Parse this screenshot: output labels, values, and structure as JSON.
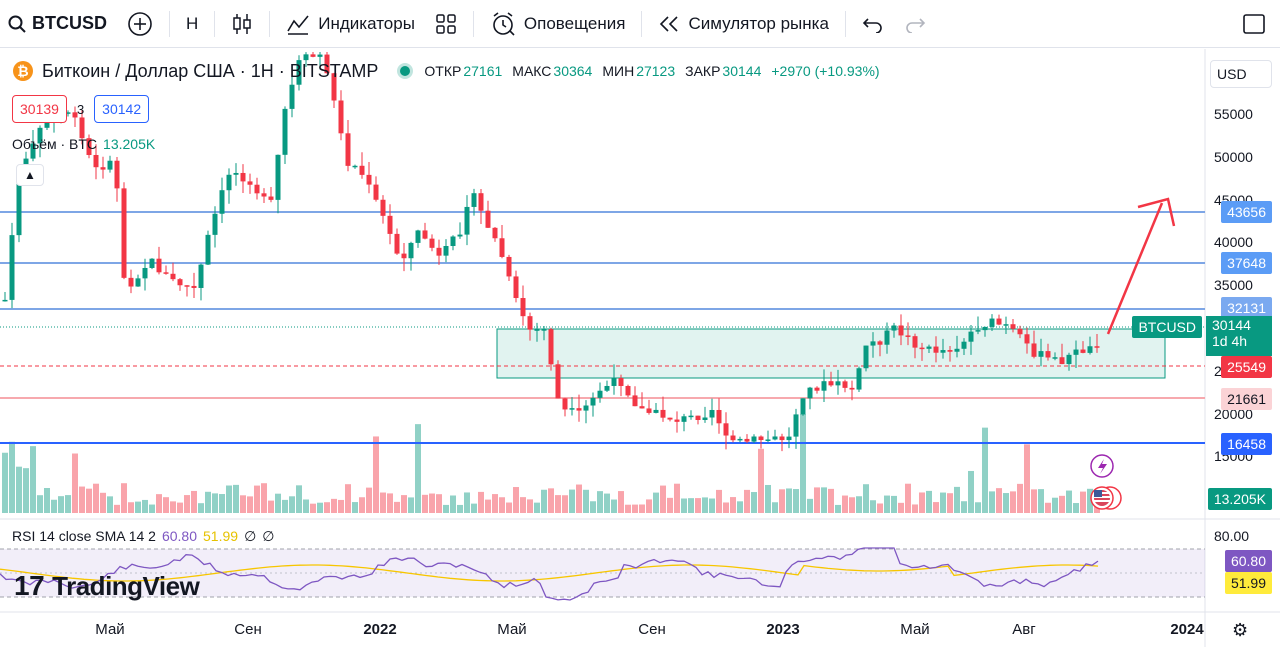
{
  "toolbar": {
    "symbol": "BTCUSD",
    "interval": "Н",
    "indicators": "Индикаторы",
    "alerts": "Оповещения",
    "replay": "Симулятор рынка"
  },
  "legend": {
    "title": "Биткоин / Доллар США · 1Н · BITSTAMP",
    "open_k": "ОТКР",
    "open_v": "27161",
    "high_k": "МАКС",
    "high_v": "30364",
    "low_k": "МИН",
    "low_v": "27123",
    "close_k": "ЗАКР",
    "close_v": "30144",
    "change": "+2970 (+10.93%)",
    "bid": "30139",
    "spread": "3",
    "ask": "30142",
    "volume_label": "Объём · BTC",
    "volume_value": "13.205K"
  },
  "currency": "USD",
  "rsi": {
    "label": "RSI 14 close SMA 14 2",
    "value": "60.80",
    "sma": "51.99",
    "extra1": "∅",
    "extra2": "∅"
  },
  "brand": "TradingView",
  "colors": {
    "up": "#089981",
    "down": "#f23645",
    "level_blue": "#2962ff",
    "rsi": "#7e57c2",
    "rsi_sma": "#f7c600"
  },
  "price_axis": [
    "55000",
    "50000",
    "45000",
    "40000",
    "35000",
    "30000",
    "25000",
    "20000",
    "15000"
  ],
  "time_axis": [
    "Май",
    "Сен",
    "2022",
    "Май",
    "Сен",
    "2023",
    "Май",
    "Авг",
    "2024"
  ],
  "rsi_axis_top": "80.00",
  "badges": {
    "l1": "43656",
    "l2": "37648",
    "l3": "32131",
    "symbol_tag": "BTCUSD",
    "last": "30144",
    "countdown": "1d 4h",
    "l4": "25549",
    "l5": "21661",
    "l6": "16458",
    "volume": "13.205K",
    "rsi": "60.80",
    "rsi_sma": "51.99"
  }
}
